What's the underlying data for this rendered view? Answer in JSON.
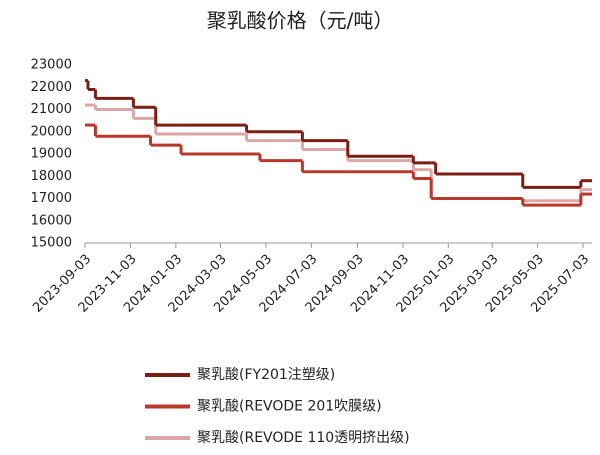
{
  "chart_data": {
    "type": "line",
    "step": true,
    "title": "聚乳酸价格（元/吨）",
    "x": [
      "2023-09-03",
      "2023-09-07",
      "2023-09-17",
      "2023-11-07",
      "2023-11-30",
      "2023-12-07",
      "2024-01-10",
      "2024-04-07",
      "2024-04-25",
      "2024-06-21",
      "2024-08-21",
      "2024-11-17",
      "2024-12-11",
      "2024-12-17",
      "2025-04-13",
      "2025-06-30",
      "2025-07-15"
    ],
    "series": [
      {
        "name": "聚乳酸(FY201注塑级)",
        "color": "#7b1e16",
        "values": [
          22300,
          21900,
          21500,
          21100,
          21100,
          20300,
          20300,
          20000,
          20000,
          19600,
          18900,
          18600,
          18600,
          18100,
          17500,
          17800,
          17800
        ]
      },
      {
        "name": "聚乳酸(REVODE 201吹膜级)",
        "color": "#b8382c",
        "values": [
          20300,
          20300,
          19800,
          19800,
          19400,
          19400,
          19000,
          19000,
          18700,
          18200,
          18200,
          17900,
          17000,
          17000,
          16700,
          17200,
          17200
        ]
      },
      {
        "name": "聚乳酸(REVODE 110透明挤出级)",
        "color": "#dba7a6",
        "values": [
          21200,
          21200,
          21000,
          20600,
          20600,
          19900,
          19900,
          19600,
          19600,
          19200,
          18700,
          18300,
          17000,
          17000,
          16900,
          17400,
          17400
        ]
      }
    ],
    "xlim": [
      "2023-09-03",
      "2025-07-15"
    ],
    "xticks": [
      "2023-09-03",
      "2023-11-03",
      "2024-01-03",
      "2024-03-03",
      "2024-05-03",
      "2024-07-03",
      "2024-09-03",
      "2024-11-03",
      "2025-01-03",
      "2025-03-03",
      "2025-05-03",
      "2025-07-03"
    ],
    "ylim": [
      15000,
      23000
    ],
    "yticks": [
      15000,
      16000,
      17000,
      18000,
      19000,
      20000,
      21000,
      22000,
      23000
    ],
    "grid": false
  }
}
